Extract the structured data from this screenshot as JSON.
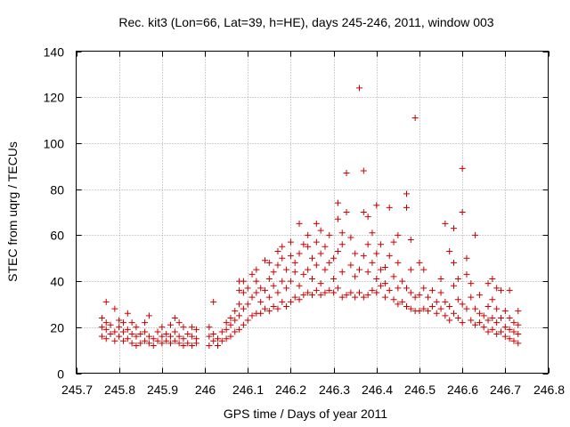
{
  "chart_data": {
    "type": "scatter",
    "title": "Rec. kit3 (Lon=66, Lat=39, h=HE), days 245-246, 2011, window 003",
    "xlabel": "GPS time / Days of year 2011",
    "ylabel": "STEC from uqrg / TECUs",
    "xlim": [
      245.7,
      246.8
    ],
    "ylim": [
      0,
      140
    ],
    "grid": true,
    "marker": "+",
    "color": "#cc0000",
    "xticks": [
      245.7,
      245.8,
      245.9,
      246.0,
      246.1,
      246.2,
      246.3,
      246.4,
      246.5,
      246.6,
      246.7,
      246.8
    ],
    "xtick_labels": [
      "245.7",
      "245.8",
      "245.9",
      "246",
      "246.1",
      "246.2",
      "246.3",
      "246.4",
      "246.5",
      "246.6",
      "246.7",
      "246.8"
    ],
    "yticks": [
      0,
      20,
      40,
      60,
      80,
      100,
      120,
      140
    ],
    "ytick_labels": [
      "0",
      "20",
      "40",
      "60",
      "80",
      "100",
      "120",
      "140"
    ],
    "points": [
      [
        245.76,
        16
      ],
      [
        245.76,
        20
      ],
      [
        245.76,
        24
      ],
      [
        245.77,
        15
      ],
      [
        245.77,
        19
      ],
      [
        245.77,
        22
      ],
      [
        245.77,
        31
      ],
      [
        245.78,
        17
      ],
      [
        245.78,
        21
      ],
      [
        245.79,
        14
      ],
      [
        245.79,
        18
      ],
      [
        245.79,
        28
      ],
      [
        245.8,
        16
      ],
      [
        245.8,
        20
      ],
      [
        245.8,
        23
      ],
      [
        245.81,
        14
      ],
      [
        245.81,
        18
      ],
      [
        245.81,
        22
      ],
      [
        245.82,
        15
      ],
      [
        245.82,
        19
      ],
      [
        245.82,
        26
      ],
      [
        245.83,
        13
      ],
      [
        245.83,
        17
      ],
      [
        245.83,
        22
      ],
      [
        245.84,
        12
      ],
      [
        245.84,
        16
      ],
      [
        245.84,
        20
      ],
      [
        245.85,
        13
      ],
      [
        245.85,
        17
      ],
      [
        245.86,
        14
      ],
      [
        245.86,
        18
      ],
      [
        245.86,
        22
      ],
      [
        245.87,
        13
      ],
      [
        245.87,
        16
      ],
      [
        245.87,
        25
      ],
      [
        245.88,
        12
      ],
      [
        245.88,
        15
      ],
      [
        245.89,
        14
      ],
      [
        245.89,
        18
      ],
      [
        245.9,
        13
      ],
      [
        245.9,
        16
      ],
      [
        245.9,
        20
      ],
      [
        245.91,
        14
      ],
      [
        245.91,
        17
      ],
      [
        245.92,
        13
      ],
      [
        245.92,
        16
      ],
      [
        245.92,
        21
      ],
      [
        245.93,
        14
      ],
      [
        245.93,
        18
      ],
      [
        245.93,
        24
      ],
      [
        245.94,
        13
      ],
      [
        245.94,
        16
      ],
      [
        245.94,
        22
      ],
      [
        245.95,
        12
      ],
      [
        245.95,
        15
      ],
      [
        245.95,
        20
      ],
      [
        245.96,
        13
      ],
      [
        245.96,
        17
      ],
      [
        245.97,
        12
      ],
      [
        245.97,
        16
      ],
      [
        245.97,
        20
      ],
      [
        245.98,
        13
      ],
      [
        245.98,
        15
      ],
      [
        245.98,
        19
      ],
      [
        246.01,
        12
      ],
      [
        246.01,
        16
      ],
      [
        246.01,
        20
      ],
      [
        246.02,
        14
      ],
      [
        246.02,
        17
      ],
      [
        246.02,
        31
      ],
      [
        246.03,
        12
      ],
      [
        246.03,
        15
      ],
      [
        246.04,
        14
      ],
      [
        246.04,
        18
      ],
      [
        246.05,
        15
      ],
      [
        246.05,
        19
      ],
      [
        246.05,
        22
      ],
      [
        246.06,
        16
      ],
      [
        246.06,
        21
      ],
      [
        246.06,
        24
      ],
      [
        246.07,
        18
      ],
      [
        246.07,
        23
      ],
      [
        246.07,
        27
      ],
      [
        246.08,
        19
      ],
      [
        246.08,
        25
      ],
      [
        246.08,
        30
      ],
      [
        246.08,
        36
      ],
      [
        246.08,
        40
      ],
      [
        246.09,
        21
      ],
      [
        246.09,
        28
      ],
      [
        246.09,
        35
      ],
      [
        246.09,
        40
      ],
      [
        246.1,
        23
      ],
      [
        246.1,
        30
      ],
      [
        246.1,
        37
      ],
      [
        246.11,
        25
      ],
      [
        246.11,
        33
      ],
      [
        246.11,
        43
      ],
      [
        246.12,
        26
      ],
      [
        246.12,
        35
      ],
      [
        246.12,
        40
      ],
      [
        246.12,
        45
      ],
      [
        246.13,
        26
      ],
      [
        246.13,
        31
      ],
      [
        246.13,
        37
      ],
      [
        246.14,
        28
      ],
      [
        246.14,
        36
      ],
      [
        246.14,
        49
      ],
      [
        246.15,
        27
      ],
      [
        246.15,
        33
      ],
      [
        246.15,
        41
      ],
      [
        246.15,
        48
      ],
      [
        246.16,
        29
      ],
      [
        246.16,
        38
      ],
      [
        246.16,
        44
      ],
      [
        246.17,
        28
      ],
      [
        246.17,
        35
      ],
      [
        246.17,
        47
      ],
      [
        246.17,
        53
      ],
      [
        246.18,
        31
      ],
      [
        246.18,
        40
      ],
      [
        246.18,
        50
      ],
      [
        246.18,
        55
      ],
      [
        246.19,
        29
      ],
      [
        246.19,
        37
      ],
      [
        246.19,
        45
      ],
      [
        246.2,
        31
      ],
      [
        246.2,
        40
      ],
      [
        246.2,
        51
      ],
      [
        246.2,
        57
      ],
      [
        246.21,
        33
      ],
      [
        246.21,
        44
      ],
      [
        246.21,
        48
      ],
      [
        246.22,
        32
      ],
      [
        246.22,
        38
      ],
      [
        246.22,
        52
      ],
      [
        246.22,
        65
      ],
      [
        246.23,
        34
      ],
      [
        246.23,
        43
      ],
      [
        246.23,
        56
      ],
      [
        246.24,
        35
      ],
      [
        246.24,
        45
      ],
      [
        246.24,
        55
      ],
      [
        246.24,
        60
      ],
      [
        246.25,
        34
      ],
      [
        246.25,
        41
      ],
      [
        246.25,
        50
      ],
      [
        246.26,
        36
      ],
      [
        246.26,
        47
      ],
      [
        246.26,
        57
      ],
      [
        246.26,
        65
      ],
      [
        246.27,
        34
      ],
      [
        246.27,
        39
      ],
      [
        246.27,
        52
      ],
      [
        246.27,
        62
      ],
      [
        246.28,
        35
      ],
      [
        246.28,
        45
      ],
      [
        246.28,
        55
      ],
      [
        246.29,
        36
      ],
      [
        246.29,
        48
      ],
      [
        246.29,
        60
      ],
      [
        246.3,
        35
      ],
      [
        246.3,
        41
      ],
      [
        246.3,
        50
      ],
      [
        246.31,
        37
      ],
      [
        246.31,
        53
      ],
      [
        246.31,
        67
      ],
      [
        246.31,
        74
      ],
      [
        246.32,
        33
      ],
      [
        246.32,
        44
      ],
      [
        246.32,
        56
      ],
      [
        246.32,
        61
      ],
      [
        246.33,
        34
      ],
      [
        246.33,
        70
      ],
      [
        246.33,
        87
      ],
      [
        246.34,
        35
      ],
      [
        246.34,
        47
      ],
      [
        246.34,
        59
      ],
      [
        246.35,
        33
      ],
      [
        246.35,
        42
      ],
      [
        246.35,
        52
      ],
      [
        246.36,
        35
      ],
      [
        246.36,
        45
      ],
      [
        246.36,
        124
      ],
      [
        246.37,
        33
      ],
      [
        246.37,
        51
      ],
      [
        246.37,
        70
      ],
      [
        246.37,
        88
      ],
      [
        246.38,
        34
      ],
      [
        246.38,
        44
      ],
      [
        246.38,
        56
      ],
      [
        246.38,
        68
      ],
      [
        246.39,
        36
      ],
      [
        246.39,
        48
      ],
      [
        246.39,
        61
      ],
      [
        246.4,
        35
      ],
      [
        246.4,
        41
      ],
      [
        246.4,
        52
      ],
      [
        246.4,
        73
      ],
      [
        246.41,
        38
      ],
      [
        246.41,
        45
      ],
      [
        246.41,
        56
      ],
      [
        246.42,
        33
      ],
      [
        246.42,
        39
      ],
      [
        246.42,
        46
      ],
      [
        246.43,
        36
      ],
      [
        246.43,
        51
      ],
      [
        246.43,
        72
      ],
      [
        246.44,
        32
      ],
      [
        246.44,
        42
      ],
      [
        246.44,
        57
      ],
      [
        246.45,
        30
      ],
      [
        246.45,
        37
      ],
      [
        246.45,
        48
      ],
      [
        246.45,
        60
      ],
      [
        246.46,
        31
      ],
      [
        246.46,
        40
      ],
      [
        246.47,
        29
      ],
      [
        246.47,
        37
      ],
      [
        246.47,
        72
      ],
      [
        246.47,
        78
      ],
      [
        246.48,
        28
      ],
      [
        246.48,
        35
      ],
      [
        246.48,
        45
      ],
      [
        246.48,
        58
      ],
      [
        246.49,
        27
      ],
      [
        246.49,
        33
      ],
      [
        246.49,
        111
      ],
      [
        246.5,
        27
      ],
      [
        246.5,
        34
      ],
      [
        246.5,
        48
      ],
      [
        246.51,
        28
      ],
      [
        246.51,
        37
      ],
      [
        246.51,
        45
      ],
      [
        246.52,
        27
      ],
      [
        246.52,
        33
      ],
      [
        246.53,
        29
      ],
      [
        246.53,
        36
      ],
      [
        246.54,
        26
      ],
      [
        246.54,
        31
      ],
      [
        246.55,
        28
      ],
      [
        246.55,
        35
      ],
      [
        246.55,
        41
      ],
      [
        246.56,
        25
      ],
      [
        246.56,
        31
      ],
      [
        246.56,
        65
      ],
      [
        246.57,
        23
      ],
      [
        246.57,
        29
      ],
      [
        246.57,
        53
      ],
      [
        246.58,
        26
      ],
      [
        246.58,
        38
      ],
      [
        246.58,
        48
      ],
      [
        246.58,
        63
      ],
      [
        246.59,
        24
      ],
      [
        246.59,
        32
      ],
      [
        246.59,
        41
      ],
      [
        246.6,
        22
      ],
      [
        246.6,
        30
      ],
      [
        246.6,
        70
      ],
      [
        246.6,
        89
      ],
      [
        246.61,
        28
      ],
      [
        246.61,
        43
      ],
      [
        246.61,
        50
      ],
      [
        246.62,
        23
      ],
      [
        246.62,
        33
      ],
      [
        246.62,
        39
      ],
      [
        246.63,
        21
      ],
      [
        246.63,
        28
      ],
      [
        246.63,
        60
      ],
      [
        246.64,
        22
      ],
      [
        246.64,
        26
      ],
      [
        246.64,
        34
      ],
      [
        246.65,
        20
      ],
      [
        246.65,
        25
      ],
      [
        246.66,
        18
      ],
      [
        246.66,
        23
      ],
      [
        246.66,
        29
      ],
      [
        246.66,
        39
      ],
      [
        246.67,
        19
      ],
      [
        246.67,
        24
      ],
      [
        246.67,
        32
      ],
      [
        246.67,
        41
      ],
      [
        246.68,
        17
      ],
      [
        246.68,
        22
      ],
      [
        246.68,
        28
      ],
      [
        246.68,
        37
      ],
      [
        246.69,
        18
      ],
      [
        246.69,
        24
      ],
      [
        246.69,
        36
      ],
      [
        246.7,
        16
      ],
      [
        246.7,
        20
      ],
      [
        246.7,
        27
      ],
      [
        246.71,
        15
      ],
      [
        246.71,
        19
      ],
      [
        246.71,
        24
      ],
      [
        246.71,
        36
      ],
      [
        246.72,
        14
      ],
      [
        246.72,
        18
      ],
      [
        246.72,
        22
      ],
      [
        246.73,
        13
      ],
      [
        246.73,
        17
      ],
      [
        246.73,
        21
      ],
      [
        246.73,
        27
      ]
    ]
  }
}
